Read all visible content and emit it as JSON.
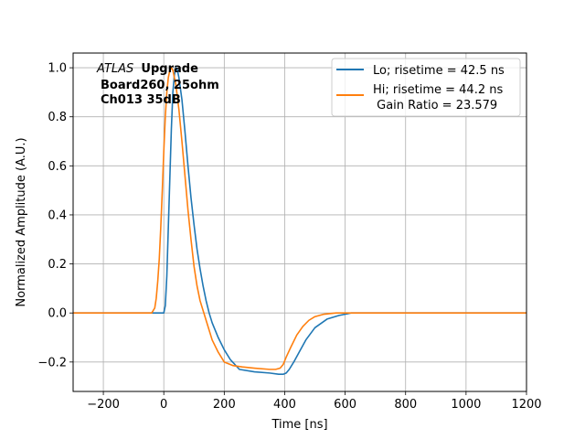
{
  "chart_data": {
    "type": "line",
    "xlabel": "Time [ns]",
    "ylabel": "Normalized Amplitude (A.U.)",
    "xlim": [
      -300,
      1200
    ],
    "ylim": [
      -0.32,
      1.06
    ],
    "xticks": [
      -200,
      0,
      200,
      400,
      600,
      800,
      1000,
      1200
    ],
    "xtick_labels": [
      "−200",
      "0",
      "200",
      "400",
      "600",
      "800",
      "1000",
      "1200"
    ],
    "yticks": [
      -0.2,
      0.0,
      0.2,
      0.4,
      0.6,
      0.8,
      1.0
    ],
    "ytick_labels": [
      "−0.2",
      "0.0",
      "0.2",
      "0.4",
      "0.6",
      "0.8",
      "1.0"
    ],
    "grid": true,
    "legend_position": "top-right",
    "annotation": {
      "prefix_italic": "ATLAS",
      "line1_bold": "Upgrade",
      "line2": "Board260, 25ohm",
      "line3": "Ch013 35dB"
    },
    "series": [
      {
        "name": "Lo; risetime = 42.5 ns",
        "color": "#1f77b4",
        "x": [
          -300,
          -200,
          -100,
          0,
          5,
          10,
          15,
          20,
          25,
          30,
          35,
          40,
          45,
          50,
          60,
          70,
          80,
          90,
          100,
          110,
          120,
          130,
          140,
          150,
          160,
          180,
          200,
          220,
          250,
          300,
          350,
          380,
          395,
          405,
          415,
          430,
          450,
          470,
          500,
          540,
          580,
          620,
          700,
          800,
          900,
          1000,
          1100,
          1200
        ],
        "y": [
          0.0,
          0.0,
          0.0,
          0.0,
          0.03,
          0.15,
          0.35,
          0.55,
          0.75,
          0.9,
          0.97,
          1.0,
          0.99,
          0.96,
          0.87,
          0.74,
          0.6,
          0.47,
          0.36,
          0.26,
          0.18,
          0.11,
          0.05,
          0.0,
          -0.04,
          -0.1,
          -0.15,
          -0.19,
          -0.23,
          -0.24,
          -0.245,
          -0.25,
          -0.25,
          -0.245,
          -0.23,
          -0.2,
          -0.155,
          -0.11,
          -0.06,
          -0.025,
          -0.01,
          0.0,
          0.0,
          0.0,
          0.0,
          0.0,
          0.0,
          0.0
        ]
      },
      {
        "name": "Hi; risetime = 44.2 ns",
        "extra_legend_line": " Gain Ratio = 23.579",
        "color": "#ff7f0e",
        "x": [
          -300,
          -200,
          -100,
          -40,
          -30,
          -25,
          -20,
          -15,
          -10,
          -5,
          0,
          5,
          10,
          15,
          20,
          25,
          30,
          40,
          50,
          60,
          70,
          80,
          90,
          100,
          110,
          120,
          140,
          160,
          180,
          200,
          230,
          260,
          300,
          350,
          370,
          385,
          395,
          405,
          420,
          440,
          460,
          480,
          500,
          530,
          570,
          620,
          700,
          800,
          900,
          1000,
          1100,
          1200
        ],
        "y": [
          0.0,
          0.0,
          0.0,
          0.0,
          0.02,
          0.06,
          0.13,
          0.22,
          0.35,
          0.5,
          0.66,
          0.8,
          0.9,
          0.96,
          0.99,
          1.0,
          0.99,
          0.93,
          0.83,
          0.7,
          0.56,
          0.42,
          0.3,
          0.19,
          0.11,
          0.05,
          -0.03,
          -0.11,
          -0.16,
          -0.2,
          -0.215,
          -0.22,
          -0.225,
          -0.23,
          -0.23,
          -0.225,
          -0.21,
          -0.18,
          -0.14,
          -0.09,
          -0.055,
          -0.03,
          -0.015,
          -0.005,
          0.0,
          0.0,
          0.0,
          0.0,
          0.0,
          0.0,
          0.0,
          0.0
        ]
      }
    ]
  }
}
